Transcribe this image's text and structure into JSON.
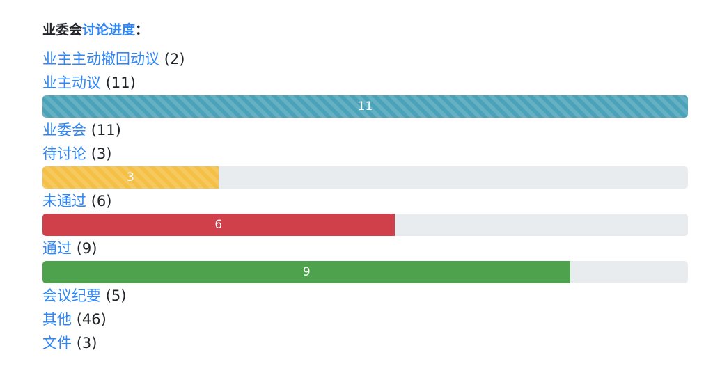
{
  "heading": {
    "prefix": "业委会",
    "link": "讨论进度",
    "suffix": "："
  },
  "items": [
    {
      "label": "业主主动撤回动议",
      "count": "(2)"
    },
    {
      "label": "业主动议",
      "count": "(11)",
      "bar": {
        "value": 11,
        "max": 11,
        "display": "11",
        "color": "#4aa3b8",
        "striped": true
      }
    },
    {
      "label": "业委会",
      "count": "(11)"
    },
    {
      "label": "待讨论",
      "count": "(3)",
      "bar": {
        "value": 3,
        "max": 11,
        "display": "3",
        "color": "#f5c044",
        "striped": true
      }
    },
    {
      "label": "未通过",
      "count": "(6)",
      "bar": {
        "value": 6,
        "max": 11,
        "display": "6",
        "color": "#d0404a",
        "striped": false
      }
    },
    {
      "label": "通过",
      "count": "(9)",
      "bar": {
        "value": 9,
        "max": 11,
        "display": "9",
        "color": "#4ea24e",
        "striped": false
      }
    },
    {
      "label": "会议纪要",
      "count": "(5)"
    },
    {
      "label": "其他",
      "count": "(46)"
    },
    {
      "label": "文件",
      "count": "(3)"
    }
  ]
}
